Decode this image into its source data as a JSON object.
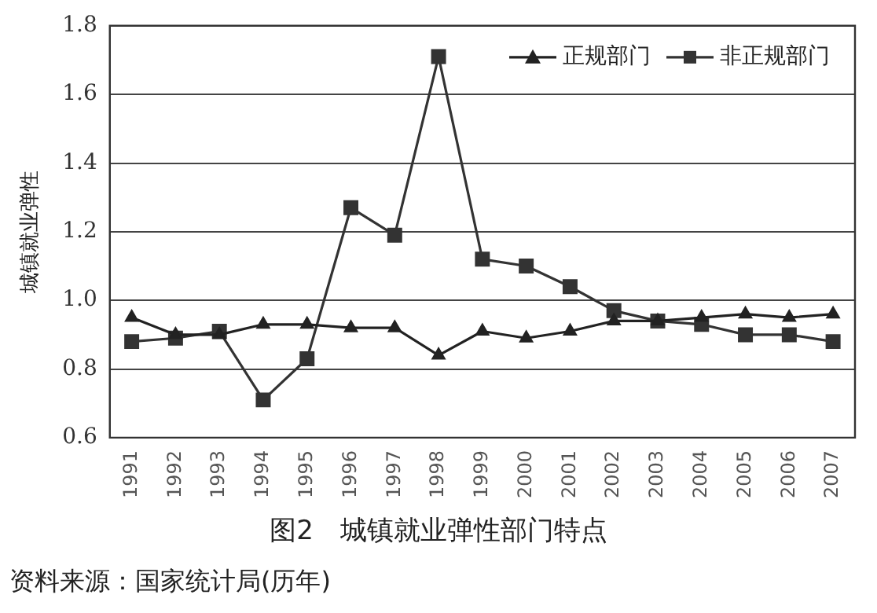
{
  "chart_data": {
    "type": "line",
    "title": "图2　城镇就业弹性部门特点",
    "ylabel": "城镇就业弹性",
    "categories": [
      "1991",
      "1992",
      "1993",
      "1994",
      "1995",
      "1996",
      "1997",
      "1998",
      "1999",
      "2000",
      "2001",
      "2002",
      "2003",
      "2004",
      "2005",
      "2006",
      "2007"
    ],
    "series": [
      {
        "name": "正规部门",
        "color": "#222222",
        "marker": "triangle",
        "values": [
          0.95,
          0.9,
          0.9,
          0.93,
          0.93,
          0.92,
          0.92,
          0.84,
          0.91,
          0.89,
          0.91,
          0.94,
          0.94,
          0.95,
          0.96,
          0.95,
          0.96
        ]
      },
      {
        "name": "非正规部门",
        "color": "#333333",
        "marker": "square",
        "values": [
          0.88,
          0.89,
          0.91,
          0.71,
          0.83,
          1.27,
          1.19,
          1.71,
          1.12,
          1.1,
          1.04,
          0.97,
          0.94,
          0.93,
          0.9,
          0.9,
          0.88
        ]
      }
    ],
    "ylim": [
      0.6,
      1.8
    ],
    "yticks": [
      0.6,
      0.8,
      {
        "value": 1,
        "label": "1.0"
      },
      1.2,
      1.4,
      1.6,
      1.8
    ],
    "grid": "y",
    "legend": "top right",
    "line_style": "solid",
    "annotations": [
      "资料来源：国家统计局(历年)"
    ]
  }
}
